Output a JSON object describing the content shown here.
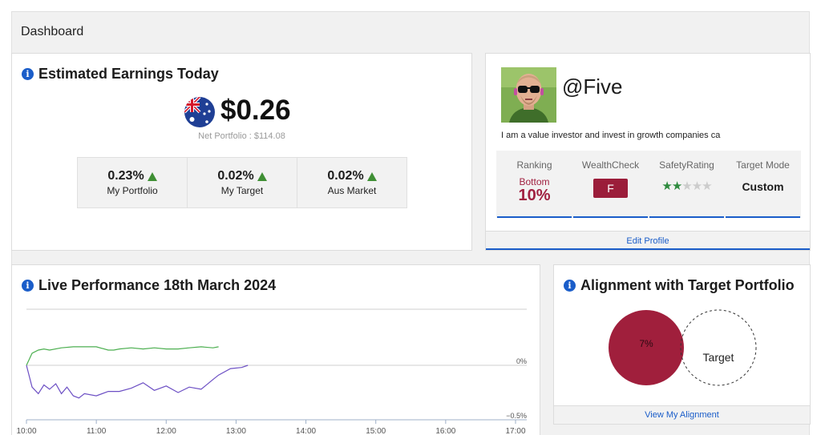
{
  "dashboard": {
    "title": "Dashboard"
  },
  "earnings": {
    "title": "Estimated Earnings Today",
    "amount": "$0.26",
    "net_portfolio": "Net Portfolio : $114.08",
    "flag_icon": "australia-flag-icon",
    "stats": [
      {
        "value": "0.23%",
        "label": "My Portfolio",
        "trend": "up"
      },
      {
        "value": "0.02%",
        "label": "My Target",
        "trend": "up"
      },
      {
        "value": "0.02%",
        "label": "Aus Market",
        "trend": "up"
      }
    ]
  },
  "profile": {
    "username": "@Five",
    "bio": "I am a value investor and invest in growth companies ca",
    "ranking": {
      "label": "Ranking",
      "word": "Bottom",
      "percent": "10%"
    },
    "wealthcheck": {
      "label": "WealthCheck",
      "grade": "F"
    },
    "safety": {
      "label": "SafetyRating",
      "rating": 2,
      "max": 5
    },
    "target_mode": {
      "label": "Target Mode",
      "value": "Custom"
    },
    "edit_label": "Edit Profile"
  },
  "live": {
    "title": "Live Performance 18th March 2024",
    "chart_data": {
      "type": "line",
      "x_ticks": [
        "10:00",
        "11:00",
        "12:00",
        "13:00",
        "14:00",
        "15:00",
        "16:00",
        "17:00"
      ],
      "y_tick_labels": [
        "0%",
        "−0.5%"
      ],
      "ylim": [
        -0.5,
        0.2
      ],
      "series": [
        {
          "color": "#4caf50",
          "x": [
            10.0,
            10.08,
            10.17,
            10.25,
            10.33,
            10.5,
            10.67,
            10.83,
            11.0,
            11.17,
            11.25,
            11.33,
            11.5,
            11.67,
            11.83,
            12.0,
            12.17,
            12.33,
            12.5,
            12.67,
            12.75
          ],
          "y": [
            0.0,
            0.11,
            0.14,
            0.15,
            0.14,
            0.16,
            0.17,
            0.17,
            0.17,
            0.14,
            0.14,
            0.15,
            0.16,
            0.15,
            0.16,
            0.15,
            0.15,
            0.16,
            0.17,
            0.16,
            0.17
          ]
        },
        {
          "color": "#6c4fc4",
          "x": [
            10.0,
            10.08,
            10.17,
            10.25,
            10.33,
            10.42,
            10.5,
            10.58,
            10.67,
            10.75,
            10.83,
            11.0,
            11.17,
            11.33,
            11.5,
            11.67,
            11.83,
            12.0,
            12.17,
            12.33,
            12.5,
            12.67,
            12.75,
            12.92,
            13.08,
            13.17
          ],
          "y": [
            0.0,
            -0.2,
            -0.26,
            -0.18,
            -0.22,
            -0.17,
            -0.26,
            -0.2,
            -0.28,
            -0.3,
            -0.26,
            -0.28,
            -0.24,
            -0.24,
            -0.21,
            -0.16,
            -0.23,
            -0.19,
            -0.25,
            -0.2,
            -0.22,
            -0.13,
            -0.09,
            -0.03,
            -0.02,
            0.0
          ]
        }
      ]
    }
  },
  "alignment": {
    "title": "Alignment with Target Portfolio",
    "portfolio_pct": "7%",
    "target_label": "Target",
    "link_label": "View My Alignment",
    "colors": {
      "portfolio": "#a01f3c"
    }
  }
}
